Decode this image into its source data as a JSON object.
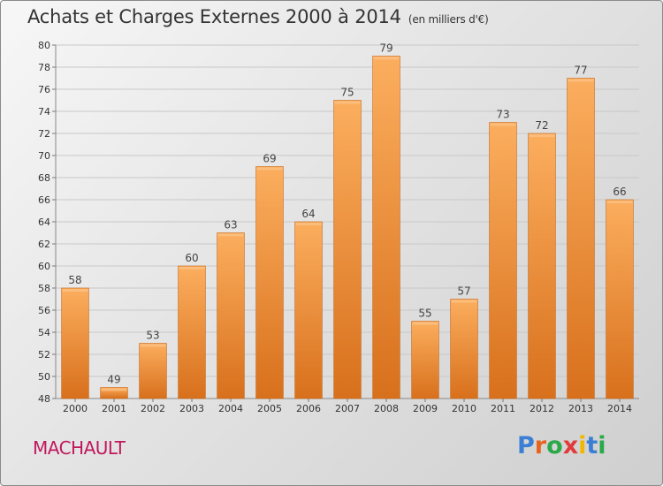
{
  "header": {
    "title": "Achats et Charges Externes 2000 à 2014",
    "unit": "(en milliers d'€)"
  },
  "footer": {
    "town": "MACHAULT",
    "logo_letters": [
      "P",
      "r",
      "o",
      "x",
      "i",
      "t",
      "i"
    ],
    "logo_colors": [
      "#3b7fd4",
      "#e8641e",
      "#2aa84a",
      "#e23a3a",
      "#f2b705",
      "#3b7fd4",
      "#2aa84a"
    ]
  },
  "colors": {
    "bar": "#f0913a",
    "bar_light": "#f9ad5c",
    "bar_dark": "#d9701a",
    "town": "#c0185e"
  },
  "chart_data": {
    "type": "bar",
    "title": "Achats et Charges Externes 2000 à 2014",
    "subtitle": "(en milliers d'€)",
    "categories": [
      "2000",
      "2001",
      "2002",
      "2003",
      "2004",
      "2005",
      "2006",
      "2007",
      "2008",
      "2009",
      "2010",
      "2011",
      "2012",
      "2013",
      "2014"
    ],
    "values": [
      58,
      49,
      53,
      60,
      63,
      69,
      64,
      75,
      79,
      55,
      57,
      73,
      72,
      77,
      66
    ],
    "ylim": [
      48,
      80
    ],
    "yticks": [
      48,
      50,
      52,
      54,
      56,
      58,
      60,
      62,
      64,
      66,
      68,
      70,
      72,
      74,
      76,
      78,
      80
    ],
    "grid": true,
    "xlabel": "",
    "ylabel": ""
  }
}
